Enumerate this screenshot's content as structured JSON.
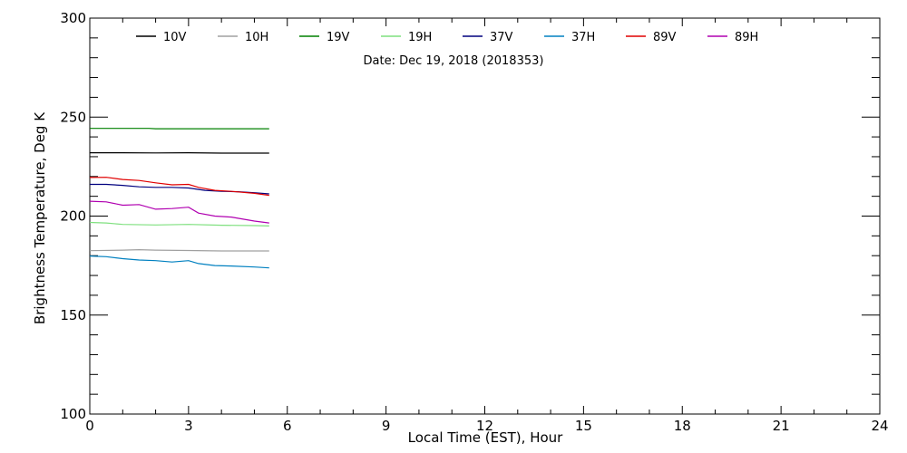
{
  "chart_data": {
    "type": "line",
    "xlabel": "Local Time (EST), Hour",
    "ylabel": "Brightness Temperature, Deg K",
    "annotation": "Date: Dec 19, 2018 (2018353)",
    "xlim": [
      0,
      24
    ],
    "ylim": [
      100,
      300
    ],
    "x_ticks": [
      0,
      3,
      6,
      9,
      12,
      15,
      18,
      21,
      24
    ],
    "y_ticks": [
      100,
      150,
      200,
      250,
      300
    ],
    "grid": false,
    "legend_position": "top",
    "series": [
      {
        "name": "10V",
        "color": "#000000",
        "points": [
          [
            0,
            232
          ],
          [
            1,
            232
          ],
          [
            2,
            231.9
          ],
          [
            3,
            232
          ],
          [
            4,
            231.8
          ],
          [
            5,
            231.8
          ],
          [
            5.45,
            231.8
          ]
        ]
      },
      {
        "name": "10H",
        "color": "#a0a0a0",
        "points": [
          [
            0,
            182.5
          ],
          [
            1,
            182.8
          ],
          [
            1.5,
            183
          ],
          [
            2,
            182.8
          ],
          [
            3,
            182.6
          ],
          [
            4,
            182.4
          ],
          [
            5,
            182.4
          ],
          [
            5.45,
            182.4
          ]
        ]
      },
      {
        "name": "19V",
        "color": "#008000",
        "points": [
          [
            0,
            244.3
          ],
          [
            1,
            244.3
          ],
          [
            1.8,
            244.3
          ],
          [
            2,
            244.1
          ],
          [
            3,
            244.1
          ],
          [
            4,
            244.1
          ],
          [
            5.45,
            244.1
          ]
        ]
      },
      {
        "name": "19H",
        "color": "#7fe07f",
        "points": [
          [
            0,
            196.8
          ],
          [
            0.5,
            196.5
          ],
          [
            1,
            195.8
          ],
          [
            2,
            195.5
          ],
          [
            3,
            195.8
          ],
          [
            4,
            195.4
          ],
          [
            5,
            195.2
          ],
          [
            5.45,
            195
          ]
        ]
      },
      {
        "name": "37V",
        "color": "#00007f",
        "points": [
          [
            0,
            216
          ],
          [
            0.5,
            216
          ],
          [
            1,
            215.5
          ],
          [
            1.5,
            214.8
          ],
          [
            2,
            214.5
          ],
          [
            2.5,
            214.5
          ],
          [
            3,
            214.2
          ],
          [
            3.5,
            213
          ],
          [
            4,
            212.5
          ],
          [
            4.5,
            212.3
          ],
          [
            5,
            211.8
          ],
          [
            5.45,
            211.2
          ]
        ]
      },
      {
        "name": "37H",
        "color": "#0080c0",
        "points": [
          [
            0,
            179.8
          ],
          [
            0.5,
            179.5
          ],
          [
            1,
            178.5
          ],
          [
            1.5,
            177.8
          ],
          [
            2,
            177.5
          ],
          [
            2.5,
            176.8
          ],
          [
            3,
            177.5
          ],
          [
            3.3,
            176
          ],
          [
            3.8,
            175
          ],
          [
            4.3,
            174.8
          ],
          [
            5,
            174.3
          ],
          [
            5.45,
            173.8
          ]
        ]
      },
      {
        "name": "89V",
        "color": "#e00000",
        "points": [
          [
            0,
            219.5
          ],
          [
            0.5,
            219.6
          ],
          [
            1,
            218.5
          ],
          [
            1.5,
            218
          ],
          [
            2,
            216.8
          ],
          [
            2.5,
            215.8
          ],
          [
            3,
            216
          ],
          [
            3.3,
            214.5
          ],
          [
            3.8,
            213
          ],
          [
            4.3,
            212.5
          ],
          [
            5,
            211.5
          ],
          [
            5.45,
            210.5
          ]
        ]
      },
      {
        "name": "89H",
        "color": "#b000b0",
        "points": [
          [
            0,
            207.5
          ],
          [
            0.5,
            207.2
          ],
          [
            1,
            205.5
          ],
          [
            1.5,
            205.8
          ],
          [
            2,
            203.5
          ],
          [
            2.5,
            203.8
          ],
          [
            3,
            204.5
          ],
          [
            3.3,
            201.5
          ],
          [
            3.8,
            200
          ],
          [
            4.3,
            199.5
          ],
          [
            5,
            197.5
          ],
          [
            5.45,
            196.5
          ]
        ]
      }
    ]
  }
}
